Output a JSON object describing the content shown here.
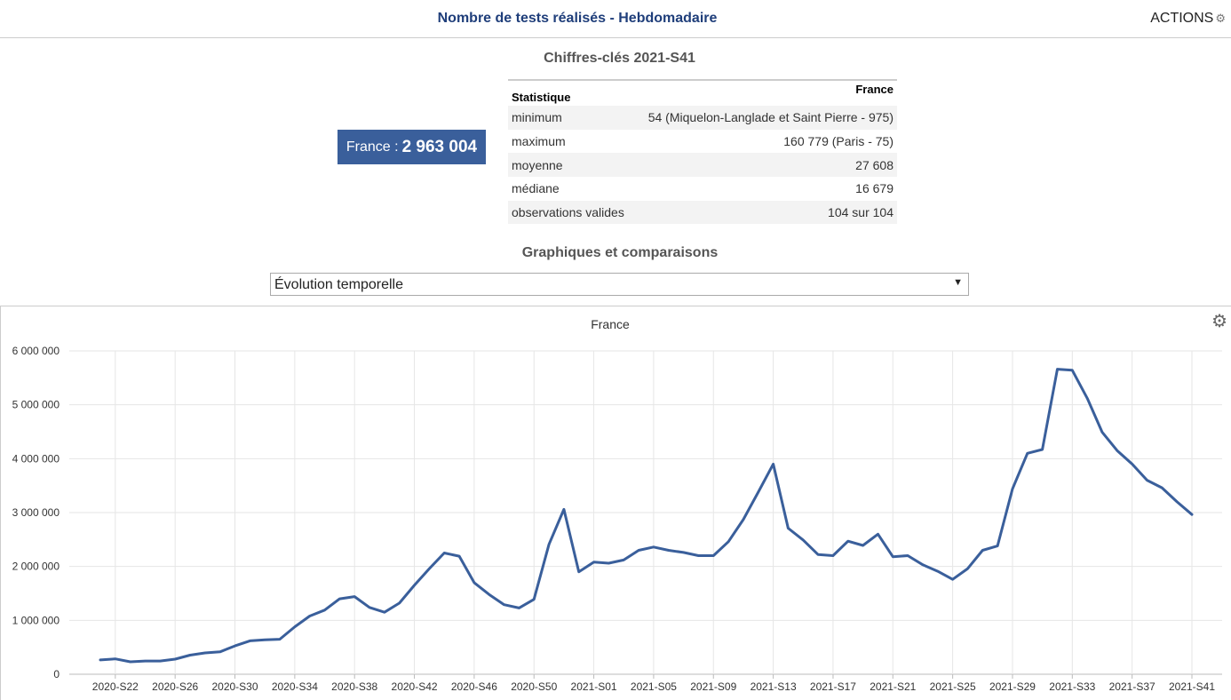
{
  "header": {
    "title": "Nombre de tests réalisés - Hebdomadaire",
    "actions_label": "ACTIONS"
  },
  "keyfigures": {
    "title": "Chiffres-clés 2021-S41",
    "badge_label": "France : ",
    "badge_value": "2 963 004",
    "table": {
      "col_stat": "Statistique",
      "col_france": "France",
      "rows": [
        {
          "label": "minimum",
          "value": "54 (Miquelon-Langlade et Saint Pierre - 975)"
        },
        {
          "label": "maximum",
          "value": "160 779 (Paris - 75)"
        },
        {
          "label": "moyenne",
          "value": "27 608"
        },
        {
          "label": "médiane",
          "value": "16 679"
        },
        {
          "label": "observations valides",
          "value": "104 sur 104"
        }
      ]
    }
  },
  "graphs": {
    "title": "Graphiques et comparaisons",
    "select_value": "Évolution temporelle"
  },
  "chart_data": {
    "type": "line",
    "title": "France",
    "xlabel": "",
    "ylabel": "",
    "ylim": [
      0,
      6000000
    ],
    "y_ticks": [
      0,
      1000000,
      2000000,
      3000000,
      4000000,
      5000000,
      6000000
    ],
    "y_tick_labels": [
      "0",
      "1 000 000",
      "2 000 000",
      "3 000 000",
      "4 000 000",
      "5 000 000",
      "6 000 000"
    ],
    "x_tick_labels": [
      "2020-S22",
      "2020-S26",
      "2020-S30",
      "2020-S34",
      "2020-S38",
      "2020-S42",
      "2020-S46",
      "2020-S50",
      "2021-S01",
      "2021-S05",
      "2021-S09",
      "2021-S13",
      "2021-S17",
      "2021-S21",
      "2021-S25",
      "2021-S29",
      "2021-S33",
      "2021-S37",
      "2021-S41"
    ],
    "color": "#3a5f9b",
    "grid": true,
    "series": [
      {
        "x": [
          "2020-S21",
          "2020-S22",
          "2020-S23",
          "2020-S24",
          "2020-S25",
          "2020-S26",
          "2020-S27",
          "2020-S28",
          "2020-S29",
          "2020-S30",
          "2020-S31",
          "2020-S32",
          "2020-S33",
          "2020-S34",
          "2020-S35",
          "2020-S36",
          "2020-S37",
          "2020-S38",
          "2020-S39",
          "2020-S40",
          "2020-S41",
          "2020-S42",
          "2020-S43",
          "2020-S44",
          "2020-S45",
          "2020-S46",
          "2020-S47",
          "2020-S48",
          "2020-S49",
          "2020-S50",
          "2020-S51",
          "2020-S52",
          "2020-S53",
          "2021-S01",
          "2021-S02",
          "2021-S03",
          "2021-S04",
          "2021-S05",
          "2021-S06",
          "2021-S07",
          "2021-S08",
          "2021-S09",
          "2021-S10",
          "2021-S11",
          "2021-S12",
          "2021-S13",
          "2021-S14",
          "2021-S15",
          "2021-S16",
          "2021-S17",
          "2021-S18",
          "2021-S19",
          "2021-S20",
          "2021-S21",
          "2021-S22",
          "2021-S23",
          "2021-S24",
          "2021-S25",
          "2021-S26",
          "2021-S27",
          "2021-S28",
          "2021-S29",
          "2021-S30",
          "2021-S31",
          "2021-S32",
          "2021-S33",
          "2021-S34",
          "2021-S35",
          "2021-S36",
          "2021-S37",
          "2021-S38",
          "2021-S39",
          "2021-S40",
          "2021-S41"
        ],
        "values": [
          265000,
          285000,
          230000,
          245000,
          245000,
          280000,
          355000,
          395000,
          415000,
          525000,
          620000,
          640000,
          650000,
          880000,
          1080000,
          1190000,
          1400000,
          1440000,
          1240000,
          1150000,
          1320000,
          1650000,
          1960000,
          2250000,
          2190000,
          1700000,
          1480000,
          1290000,
          1230000,
          1390000,
          2410000,
          3060000,
          1900000,
          2080000,
          2060000,
          2120000,
          2300000,
          2360000,
          2300000,
          2260000,
          2200000,
          2200000,
          2460000,
          2870000,
          3380000,
          3900000,
          2710000,
          2490000,
          2220000,
          2200000,
          2470000,
          2390000,
          2600000,
          2180000,
          2200000,
          2030000,
          1910000,
          1760000,
          1960000,
          2300000,
          2380000,
          3440000,
          4100000,
          4170000,
          5660000,
          5640000,
          5120000,
          4490000,
          4150000,
          3900000,
          3600000,
          3460000,
          3200000,
          2963004
        ]
      }
    ]
  }
}
